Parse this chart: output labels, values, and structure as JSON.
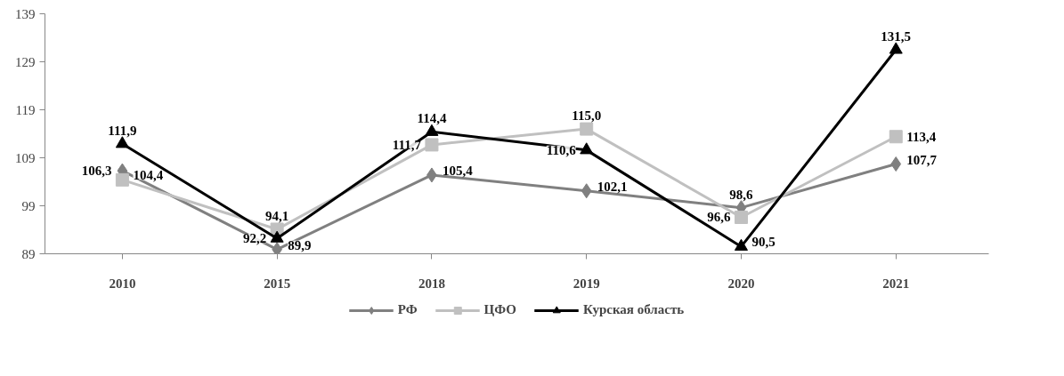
{
  "chart_data": {
    "type": "line",
    "categories": [
      "2010",
      "2015",
      "2018",
      "2019",
      "2020",
      "2021"
    ],
    "ylim": [
      89,
      139
    ],
    "yticks": [
      89,
      99,
      109,
      119,
      129,
      139
    ],
    "grid": false,
    "legend": "bottom",
    "series": [
      {
        "name": "РФ",
        "color": "#808080",
        "marker": "diamond",
        "values": [
          106.3,
          89.9,
          105.4,
          102.1,
          98.6,
          107.7
        ],
        "value_labels": [
          "106,3",
          "89,9",
          "105,4",
          "102,1",
          "98,6",
          "107,7"
        ]
      },
      {
        "name": "ЦФО",
        "color": "#c0c0c0",
        "marker": "square",
        "values": [
          104.4,
          94.1,
          111.7,
          115.0,
          96.6,
          113.4
        ],
        "value_labels": [
          "104,4",
          "94,1",
          "111,7",
          "115,0",
          "96,6",
          "113,4"
        ]
      },
      {
        "name": "Курская область",
        "color": "#000000",
        "marker": "triangle",
        "values": [
          111.9,
          92.2,
          114.4,
          110.6,
          90.5,
          131.5
        ],
        "value_labels": [
          "111,9",
          "92,2",
          "114,4",
          "110,6",
          "90,5",
          "131,5"
        ]
      }
    ]
  }
}
